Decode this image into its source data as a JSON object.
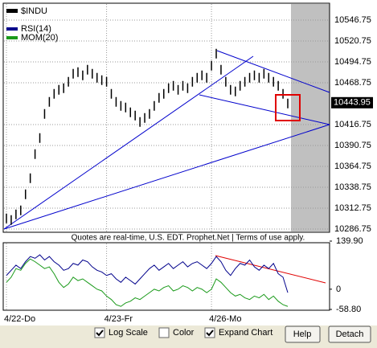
{
  "chart_data": [
    {
      "type": "ohlc",
      "categories": [
        "4/22-Do",
        null,
        null,
        null,
        null,
        null,
        null,
        null,
        null,
        null,
        null,
        null,
        null,
        null,
        null,
        null,
        null,
        null,
        null,
        null,
        null,
        "4/23-Fr",
        null,
        null,
        null,
        null,
        null,
        null,
        null,
        null,
        null,
        null,
        null,
        null,
        null,
        null,
        null,
        null,
        null,
        null,
        null,
        null,
        null,
        "4/26-Mo",
        null,
        null,
        null,
        null,
        null,
        null,
        null,
        null,
        null,
        null,
        null,
        null,
        null,
        null,
        null,
        null
      ],
      "series": [
        {
          "name": "$INDU",
          "color": "#000000",
          "high": [
            10306,
            10304,
            10311,
            10316,
            10336,
            10356,
            10386,
            10406,
            10436,
            10451,
            10461,
            10466,
            10468,
            10476,
            10486,
            10488,
            10484,
            10491,
            10486,
            10481,
            10478,
            10476,
            10461,
            10451,
            10446,
            10444,
            10438,
            10434,
            10426,
            10431,
            10436,
            10446,
            10456,
            10461,
            10468,
            10471,
            10466,
            10471,
            10468,
            10476,
            10481,
            10484,
            10481,
            10496,
            10511,
            10491,
            10476,
            10466,
            10464,
            10471,
            10476,
            10481,
            10484,
            10481,
            10486,
            10481,
            10476,
            10471,
            10461,
            10449
          ],
          "low": [
            10294,
            10292,
            10299,
            10304,
            10324,
            10344,
            10374,
            10394,
            10424,
            10439,
            10449,
            10454,
            10456,
            10464,
            10474,
            10476,
            10472,
            10479,
            10474,
            10469,
            10466,
            10464,
            10449,
            10439,
            10434,
            10432,
            10426,
            10422,
            10414,
            10419,
            10424,
            10434,
            10444,
            10449,
            10456,
            10459,
            10454,
            10459,
            10456,
            10464,
            10469,
            10472,
            10469,
            10484,
            10499,
            10479,
            10464,
            10454,
            10452,
            10459,
            10464,
            10469,
            10472,
            10469,
            10474,
            10469,
            10464,
            10459,
            10449,
            10437
          ]
        }
      ],
      "last_price": 10443.95,
      "ylim": [
        10283.75,
        10566.75
      ],
      "yticks": [
        10546.75,
        10520.75,
        10494.75,
        10468.75,
        10416.75,
        10390.75,
        10364.75,
        10338.75,
        10312.75,
        10286.75
      ],
      "grid": true
    },
    {
      "type": "line",
      "series": [
        {
          "name": "RSI(14)",
          "color": "#00008b",
          "values": [
            40,
            55,
            70,
            60,
            80,
            95,
            90,
            100,
            85,
            95,
            80,
            70,
            55,
            60,
            75,
            70,
            85,
            80,
            65,
            55,
            50,
            40,
            45,
            30,
            20,
            35,
            25,
            15,
            30,
            45,
            60,
            70,
            55,
            65,
            75,
            60,
            70,
            80,
            65,
            75,
            80,
            70,
            60,
            75,
            95,
            80,
            55,
            40,
            60,
            75,
            70,
            85,
            65,
            55,
            70,
            60,
            75,
            45,
            35,
            -10
          ]
        },
        {
          "name": "MOM(20)",
          "color": "#1a9a1a",
          "values": [
            20,
            35,
            60,
            55,
            75,
            88,
            80,
            70,
            60,
            65,
            45,
            20,
            5,
            15,
            35,
            25,
            30,
            20,
            10,
            0,
            -5,
            -20,
            -30,
            -45,
            -50,
            -40,
            -35,
            -25,
            -30,
            -20,
            -10,
            0,
            -5,
            5,
            10,
            -5,
            0,
            10,
            5,
            -5,
            5,
            0,
            -10,
            0,
            30,
            20,
            5,
            -10,
            -20,
            -15,
            -25,
            -30,
            -20,
            -25,
            -15,
            -30,
            -20,
            -35,
            -45,
            -50
          ]
        }
      ],
      "ylim": [
        -58.8,
        139.9
      ],
      "yticks": [
        {
          "value": 139.9,
          "label": "139.90"
        },
        0,
        {
          "value": -58.8,
          "label": "-58.80"
        }
      ]
    }
  ],
  "notice": "Quotes are real-time, U.S. EDT. Prophet.Net | Terms of use apply.",
  "controls": {
    "log_scale": "Log Scale",
    "color": "Color",
    "expand_chart": "Expand Chart",
    "help": "Help",
    "detach": "Detach"
  }
}
